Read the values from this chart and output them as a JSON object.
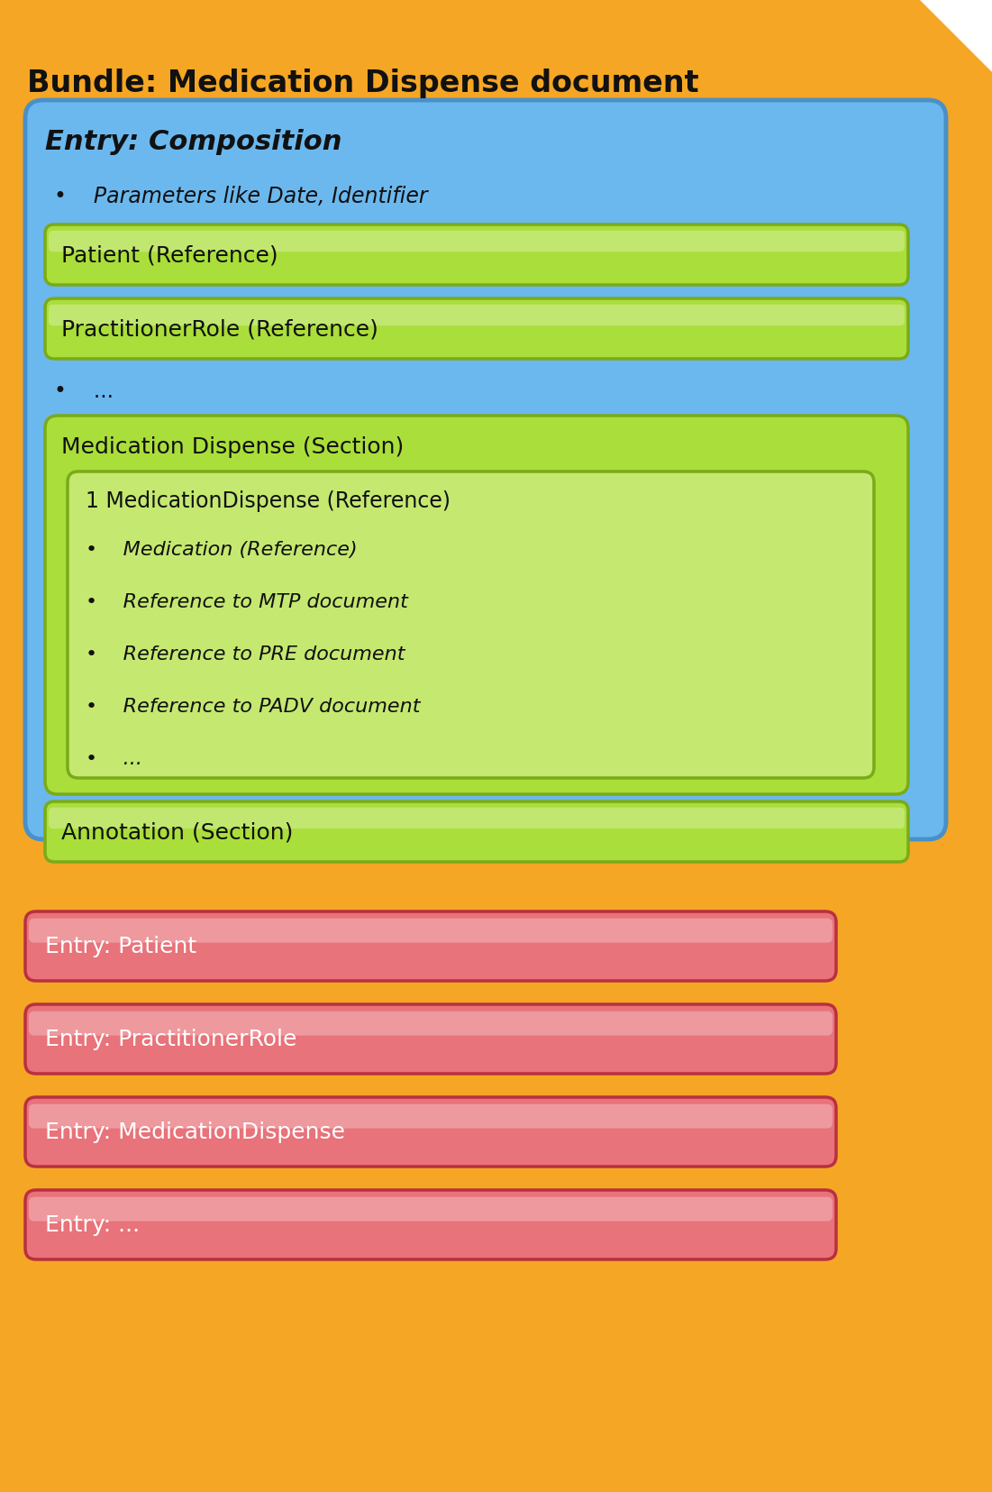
{
  "title": "Bundle: Medication Dispense document",
  "bg_color": "#F5A624",
  "blue_box": {
    "label": "Entry: Composition",
    "color": "#6BB8EE",
    "border_color": "#4A90C8"
  },
  "green_boxes_simple": [
    "Patient (Reference)",
    "PractitionerRole (Reference)"
  ],
  "green_section": {
    "label": "Medication Dispense (Section)",
    "color": "#AADE3A",
    "border_color": "#7AAA18"
  },
  "inner_green_box": {
    "title": "1 MedicationDispense (Reference)",
    "bullets": [
      "Medication (Reference)",
      "Reference to MTP document",
      "Reference to PRE document",
      "Reference to PADV document",
      "..."
    ],
    "color": "#C5E870",
    "border_color": "#7AAA18"
  },
  "annotation_box": {
    "label": "Annotation (Section)",
    "color": "#AADE3A",
    "border_color": "#7AAA18"
  },
  "red_boxes": [
    "Entry: Patient",
    "Entry: PractitionerRole",
    "Entry: MedicationDispense",
    "Entry: ..."
  ],
  "red_color": "#E8737A",
  "red_border": "#B83040",
  "white_text": "#FFFFFF",
  "dark_text": "#111111"
}
